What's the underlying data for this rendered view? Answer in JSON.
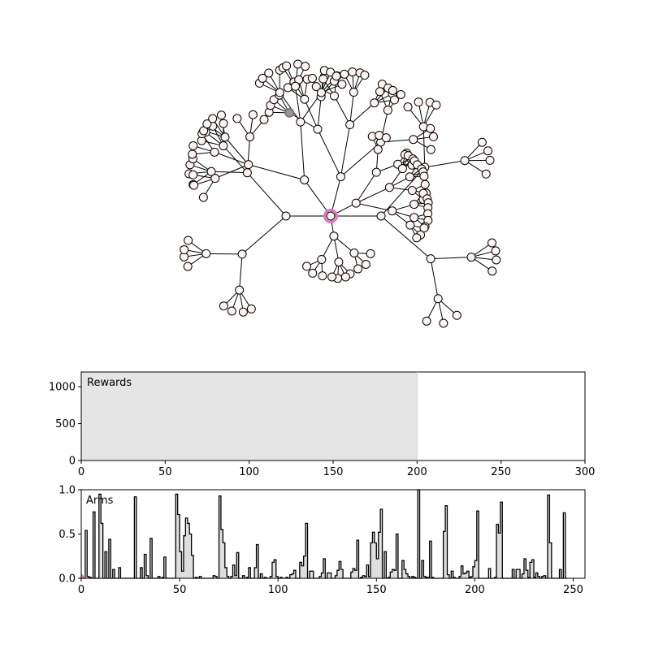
{
  "tree": {
    "node_fill": "#fdf3f0",
    "edge_color": "#000000",
    "current_node_ring": "#e377c2",
    "highlight_node_color": "#7f7f7f"
  },
  "chart_data": [
    {
      "type": "area",
      "label": "Rewards",
      "xlim": [
        0,
        300
      ],
      "ylim": [
        0,
        1200
      ],
      "xticks": [
        0,
        50,
        100,
        150,
        200,
        250,
        300
      ],
      "yticks": [
        0,
        500,
        1000
      ],
      "shaded_span": [
        0,
        200
      ],
      "shade_color": "#e5e5e5",
      "grid": false
    },
    {
      "type": "bar",
      "label": "Arms",
      "xlim": [
        0,
        256
      ],
      "ylim": [
        0,
        1.0
      ],
      "xticks": [
        0,
        50,
        100,
        150,
        200,
        250
      ],
      "yticks": [
        "0.0",
        "0.5",
        "1.0"
      ],
      "bar_fill": "#dddddd",
      "grid": false,
      "values": [
        0.01,
        0,
        0.54,
        0.02,
        0.01,
        0,
        0.75,
        0,
        0,
        0.95,
        0.62,
        0,
        0.3,
        0,
        0.44,
        0,
        0.1,
        0,
        0,
        0.12,
        0,
        0,
        0,
        0,
        0,
        0,
        0,
        0.92,
        0,
        0,
        0.12,
        0,
        0.27,
        0.03,
        0,
        0.45,
        0,
        0,
        0,
        0.02,
        0,
        0.01,
        0.24,
        0,
        0,
        0,
        0,
        0,
        0.95,
        0.72,
        0.3,
        0.08,
        0.48,
        0.68,
        0.62,
        0.5,
        0.26,
        0,
        0.01,
        0,
        0.02,
        0,
        0,
        0,
        0,
        0,
        0,
        0.03,
        0.02,
        0,
        0.93,
        0.55,
        0.4,
        0.12,
        0.02,
        0,
        0.02,
        0.15,
        0.03,
        0.29,
        0,
        0,
        0.03,
        0,
        0.01,
        0.12,
        0,
        0,
        0.12,
        0.38,
        0,
        0.05,
        0,
        0.01,
        0,
        0,
        0.02,
        0.18,
        0.21,
        0.02,
        0,
        0.01,
        0,
        0,
        0.01,
        0,
        0.04,
        0.05,
        0.09,
        0,
        0,
        0.18,
        0.14,
        0.25,
        0.62,
        0,
        0.08,
        0.08,
        0,
        0,
        0,
        0.02,
        0.06,
        0.22,
        0,
        0.06,
        0.06,
        0,
        0,
        0.03,
        0.09,
        0.19,
        0.1,
        0,
        0,
        0,
        0,
        0.07,
        0.11,
        0.09,
        0.43,
        0,
        0.01,
        0.03,
        0.02,
        0.15,
        0.02,
        0.4,
        0.52,
        0.4,
        0.22,
        0.52,
        0.78,
        0,
        0.3,
        0,
        0.01,
        0.07,
        0.1,
        0.09,
        0.5,
        0,
        0,
        0.2,
        0.1,
        0.05,
        0.02,
        0,
        0.02,
        0.01,
        0,
        1.0,
        0,
        0.2,
        0.02,
        0.01,
        0.01,
        0.42,
        0.01,
        0,
        0,
        0,
        0,
        0,
        0.53,
        0.82,
        0.04,
        0,
        0.08,
        0.01,
        0,
        0,
        0.02,
        0.14,
        0.05,
        0.06,
        0.08,
        0.01,
        0.02,
        0.13,
        0.2,
        0.76,
        0,
        0,
        0,
        0,
        0,
        0.11,
        0,
        0,
        0.01,
        0.61,
        0.51,
        0.86,
        0,
        0,
        0,
        0,
        0,
        0.1,
        0,
        0.1,
        0.1,
        0,
        0.05,
        0.22,
        0.09,
        0.01,
        0.18,
        0.21,
        0.01,
        0.06,
        0.02,
        0,
        0.02,
        0.03,
        0,
        0.94,
        0.4,
        0,
        0,
        0,
        0,
        0.1,
        0,
        0.74,
        0
      ]
    }
  ]
}
